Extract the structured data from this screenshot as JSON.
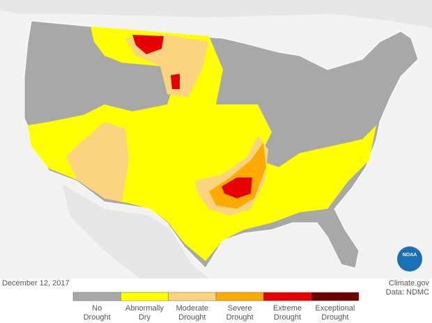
{
  "date": "December 12, 2017",
  "credits": [
    "Climate.gov",
    "Data: NDMC"
  ],
  "logo": "NOAA",
  "legend": [
    {
      "label": [
        "No",
        "Drought"
      ],
      "color": "#a8a8a8"
    },
    {
      "label": [
        "Abnormally",
        "Dry"
      ],
      "color": "#ffff00"
    },
    {
      "label": [
        "Moderate",
        "Drought"
      ],
      "color": "#fcd37f"
    },
    {
      "label": [
        "Severe",
        "Drought"
      ],
      "color": "#ffaa00"
    },
    {
      "label": [
        "Extreme",
        "Drought"
      ],
      "color": "#e60000"
    },
    {
      "label": [
        "Exceptional",
        "Drought"
      ],
      "color": "#730000"
    }
  ]
}
